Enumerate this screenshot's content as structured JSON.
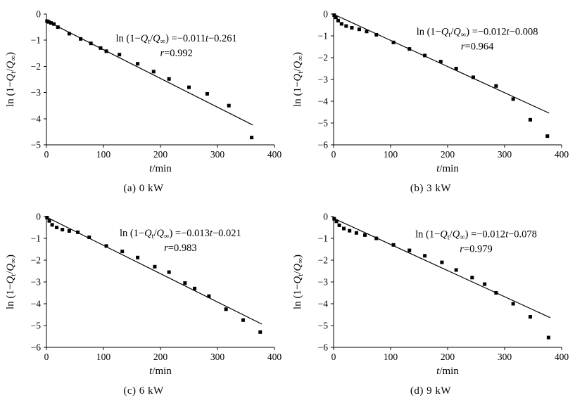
{
  "page": {
    "background": "#ffffff",
    "foreground": "#000000"
  },
  "chart_data": [
    {
      "type": "scatter",
      "caption": "(a)  0 kW",
      "xlabel": "*t*/min",
      "ylabel": "ln (1−*Q*_t/*Q*_∞)",
      "equation": "ln (1−*Q*_t/*Q*_∞) =−0.011*t*−0.261",
      "r_label": "*r*=0.992",
      "xlim": [
        0,
        400
      ],
      "ylim": [
        -5,
        0
      ],
      "xticks": [
        0,
        100,
        200,
        300,
        400
      ],
      "yticks": [
        0,
        -1,
        -2,
        -3,
        -4,
        -5
      ],
      "points": {
        "t": [
          1,
          4,
          8,
          13,
          20,
          40,
          60,
          78,
          95,
          105,
          128,
          160,
          188,
          215,
          250,
          282,
          320,
          360
        ],
        "y": [
          -0.27,
          -0.3,
          -0.34,
          -0.38,
          -0.5,
          -0.75,
          -0.95,
          -1.12,
          -1.3,
          -1.42,
          -1.55,
          -1.9,
          -2.2,
          -2.48,
          -2.8,
          -3.05,
          -3.5,
          -4.72
        ]
      },
      "fit": {
        "slope": -0.011,
        "intercept": -0.261,
        "t_start": 0,
        "t_end": 362
      },
      "annotation_anchor": {
        "t": 228,
        "y": -1.05
      },
      "marker": "square",
      "color": "#000000",
      "grid": false,
      "legend": "none"
    },
    {
      "type": "scatter",
      "caption": "(b)  3 kW",
      "xlabel": "*t*/min",
      "ylabel": "ln (1−*Q*_t/*Q*_∞)",
      "equation": "ln (1−*Q*_t/*Q*_∞) =−0.012*t*−0.008",
      "r_label": "*r*=0.964",
      "xlim": [
        0,
        400
      ],
      "ylim": [
        -6,
        0
      ],
      "xticks": [
        0,
        100,
        200,
        300,
        400
      ],
      "yticks": [
        0,
        -1,
        -2,
        -3,
        -4,
        -5,
        -6
      ],
      "points": {
        "t": [
          1,
          4,
          8,
          14,
          22,
          32,
          45,
          58,
          75,
          105,
          133,
          160,
          188,
          215,
          245,
          285,
          315,
          345,
          375
        ],
        "y": [
          -0.05,
          -0.15,
          -0.3,
          -0.45,
          -0.55,
          -0.63,
          -0.7,
          -0.8,
          -0.95,
          -1.3,
          -1.6,
          -1.9,
          -2.18,
          -2.5,
          -2.9,
          -3.3,
          -3.9,
          -4.85,
          -5.6
        ]
      },
      "fit": {
        "slope": -0.012,
        "intercept": -0.008,
        "t_start": 0,
        "t_end": 378
      },
      "annotation_anchor": {
        "t": 252,
        "y": -0.95
      },
      "marker": "square",
      "color": "#000000",
      "grid": false,
      "legend": "none"
    },
    {
      "type": "scatter",
      "caption": "(c)  6 kW",
      "xlabel": "*t*/min",
      "ylabel": "ln (1−*Q*_t/*Q*_∞)",
      "equation": "ln (1−*Q*_t/*Q*_∞) =−0.013*t*−0.021",
      "r_label": "*r*=0.983",
      "xlim": [
        0,
        400
      ],
      "ylim": [
        -6,
        0
      ],
      "xticks": [
        0,
        100,
        200,
        300,
        400
      ],
      "yticks": [
        0,
        -1,
        -2,
        -3,
        -4,
        -5,
        -6
      ],
      "points": {
        "t": [
          1,
          5,
          10,
          18,
          28,
          40,
          55,
          75,
          105,
          133,
          160,
          190,
          215,
          243,
          260,
          285,
          315,
          345,
          375
        ],
        "y": [
          -0.05,
          -0.2,
          -0.38,
          -0.5,
          -0.6,
          -0.66,
          -0.72,
          -0.95,
          -1.35,
          -1.6,
          -1.88,
          -2.3,
          -2.55,
          -3.05,
          -3.3,
          -3.65,
          -4.25,
          -4.75,
          -5.3
        ]
      },
      "fit": {
        "slope": -0.013,
        "intercept": -0.021,
        "t_start": 0,
        "t_end": 378
      },
      "annotation_anchor": {
        "t": 235,
        "y": -0.9
      },
      "marker": "square",
      "color": "#000000",
      "grid": false,
      "legend": "none"
    },
    {
      "type": "scatter",
      "caption": "(d)  9 kW",
      "xlabel": "*t*/min",
      "ylabel": "ln (1−*Q*_t/*Q*_∞)",
      "equation": "ln (1−*Q*_t/*Q*_∞) =−0.012*t*−0.078",
      "r_label": "*r*=0.979",
      "xlim": [
        0,
        400
      ],
      "ylim": [
        -6,
        0
      ],
      "xticks": [
        0,
        100,
        200,
        300,
        400
      ],
      "yticks": [
        0,
        -1,
        -2,
        -3,
        -4,
        -5,
        -6
      ],
      "points": {
        "t": [
          1,
          5,
          10,
          18,
          28,
          40,
          55,
          75,
          105,
          133,
          160,
          190,
          215,
          243,
          265,
          285,
          315,
          345,
          377
        ],
        "y": [
          -0.1,
          -0.22,
          -0.4,
          -0.55,
          -0.65,
          -0.75,
          -0.85,
          -1.0,
          -1.3,
          -1.55,
          -1.8,
          -2.1,
          -2.45,
          -2.8,
          -3.1,
          -3.5,
          -4.0,
          -4.6,
          -5.55
        ]
      },
      "fit": {
        "slope": -0.012,
        "intercept": -0.078,
        "t_start": 0,
        "t_end": 380
      },
      "annotation_anchor": {
        "t": 250,
        "y": -0.95
      },
      "marker": "square",
      "color": "#000000",
      "grid": false,
      "legend": "none"
    }
  ]
}
